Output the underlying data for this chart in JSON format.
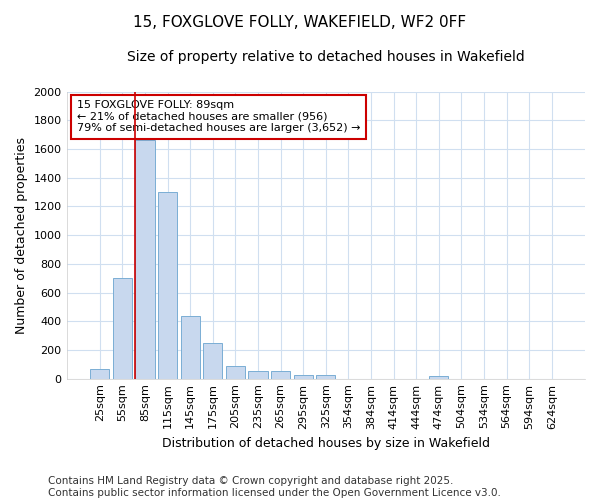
{
  "title1": "15, FOXGLOVE FOLLY, WAKEFIELD, WF2 0FF",
  "title2": "Size of property relative to detached houses in Wakefield",
  "xlabel": "Distribution of detached houses by size in Wakefield",
  "ylabel": "Number of detached properties",
  "categories": [
    "25sqm",
    "55sqm",
    "85sqm",
    "115sqm",
    "145sqm",
    "175sqm",
    "205sqm",
    "235sqm",
    "265sqm",
    "295sqm",
    "325sqm",
    "354sqm",
    "384sqm",
    "414sqm",
    "444sqm",
    "474sqm",
    "504sqm",
    "534sqm",
    "564sqm",
    "594sqm",
    "624sqm"
  ],
  "values": [
    70,
    700,
    1660,
    1300,
    440,
    250,
    90,
    55,
    55,
    25,
    25,
    0,
    0,
    0,
    0,
    20,
    0,
    0,
    0,
    0,
    0
  ],
  "bar_color": "#c8d8ee",
  "bar_edge_color": "#7aaed4",
  "vline_color": "#cc0000",
  "annotation_text": "15 FOXGLOVE FOLLY: 89sqm\n← 21% of detached houses are smaller (956)\n79% of semi-detached houses are larger (3,652) →",
  "annotation_box_color": "#cc0000",
  "ylim": [
    0,
    2000
  ],
  "yticks": [
    0,
    200,
    400,
    600,
    800,
    1000,
    1200,
    1400,
    1600,
    1800,
    2000
  ],
  "footer1": "Contains HM Land Registry data © Crown copyright and database right 2025.",
  "footer2": "Contains public sector information licensed under the Open Government Licence v3.0.",
  "bg_color": "#ffffff",
  "plot_bg_color": "#ffffff",
  "grid_color": "#d0dff0",
  "title1_fontsize": 11,
  "title2_fontsize": 10,
  "axis_label_fontsize": 9,
  "tick_fontsize": 8,
  "footer_fontsize": 7.5,
  "annot_fontsize": 8
}
